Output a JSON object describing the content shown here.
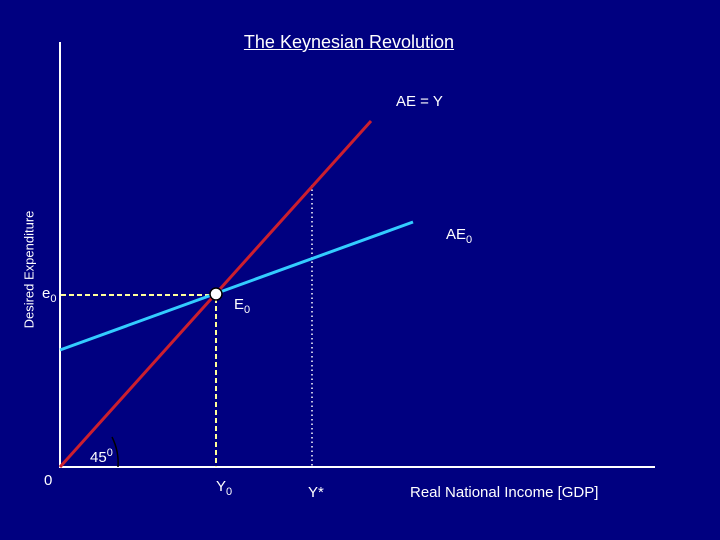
{
  "title": "The Keynesian Revolution",
  "y_axis_label": "Desired Expenditure",
  "x_axis_label": "Real National Income [GDP]",
  "origin_label": "0",
  "ae_y_label": "AE = Y",
  "ae0_label": {
    "base": "AE",
    "sub": "0"
  },
  "e0_label": {
    "base": "e",
    "sub": "0"
  },
  "E0_label": {
    "base": "E",
    "sub": "0"
  },
  "Y0_label": {
    "base": "Y",
    "sub": "0"
  },
  "ystar_label": "Y*",
  "angle_label": {
    "base": "45",
    "sup": "0"
  },
  "colors": {
    "background": "#000080",
    "axes": "#ffffff",
    "ae_y_line": "#cc1f2e",
    "ae0_line": "#33ccff",
    "dashed_guides": "#ffff99",
    "dotted_guide": "#ffffff",
    "equilibrium_point": "#ffffff"
  }
}
